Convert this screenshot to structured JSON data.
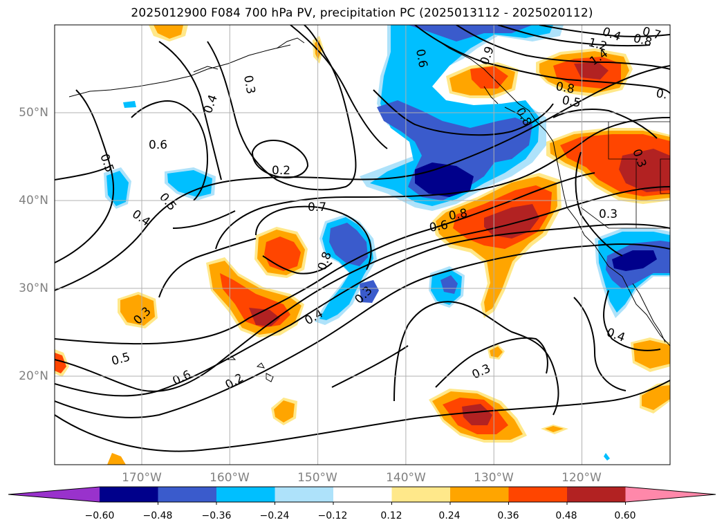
{
  "title": "2025012900 F084 700 hPa PV, precipitation PC (2025013112 - 2025020112)",
  "map": {
    "lat_labels": [
      "50°N",
      "40°N",
      "30°N",
      "20°N"
    ],
    "lat_values": [
      50,
      40,
      30,
      20
    ],
    "lon_labels": [
      "170°W",
      "160°W",
      "150°W",
      "140°W",
      "130°W",
      "120°W"
    ],
    "lon_values": [
      -170,
      -160,
      -150,
      -140,
      -130,
      -120
    ],
    "grid": true,
    "region": "North-east Pacific Ocean and western North America",
    "contour_field": "700 hPa PV",
    "contour_labels": [
      "0.7",
      "0.8",
      "1.2",
      "1.4",
      "0.6",
      "0.8",
      "0.5",
      "0.",
      "0.9",
      "0.3",
      "0.4",
      "0.6",
      "0.5",
      "0.2",
      "0.5",
      "0.4",
      "0.7",
      "0.8",
      "0.6",
      "0.8",
      "0.3",
      "0.3",
      "0.3",
      "0.4",
      "0.8",
      "0.3",
      "0.4",
      "0.5",
      "0.6",
      "0.2",
      "0.3",
      "0.4"
    ],
    "shading_field": "precipitation PC"
  },
  "colorbar": {
    "ticks": [
      "−0.60",
      "−0.48",
      "−0.36",
      "−0.24",
      "−0.12",
      "0.12",
      "0.24",
      "0.36",
      "0.48",
      "0.60"
    ],
    "bins": [
      {
        "range": "< -0.60",
        "color": "#9932cc"
      },
      {
        "range": "-0.60 to -0.48",
        "color": "#00008b"
      },
      {
        "range": "-0.48 to -0.36",
        "color": "#3a5bcc"
      },
      {
        "range": "-0.36 to -0.24",
        "color": "#00bfff"
      },
      {
        "range": "-0.24 to -0.12",
        "color": "#aee2fa"
      },
      {
        "range": "-0.12 to 0.12",
        "color": "#ffffff"
      },
      {
        "range": "0.12 to 0.24",
        "color": "#ffe88a"
      },
      {
        "range": "0.24 to 0.36",
        "color": "#ffa500"
      },
      {
        "range": "0.36 to 0.48",
        "color": "#ff4500"
      },
      {
        "range": "0.48 to 0.60",
        "color": "#b22222"
      },
      {
        "range": "> 0.60",
        "color": "#ff88aa"
      }
    ]
  }
}
